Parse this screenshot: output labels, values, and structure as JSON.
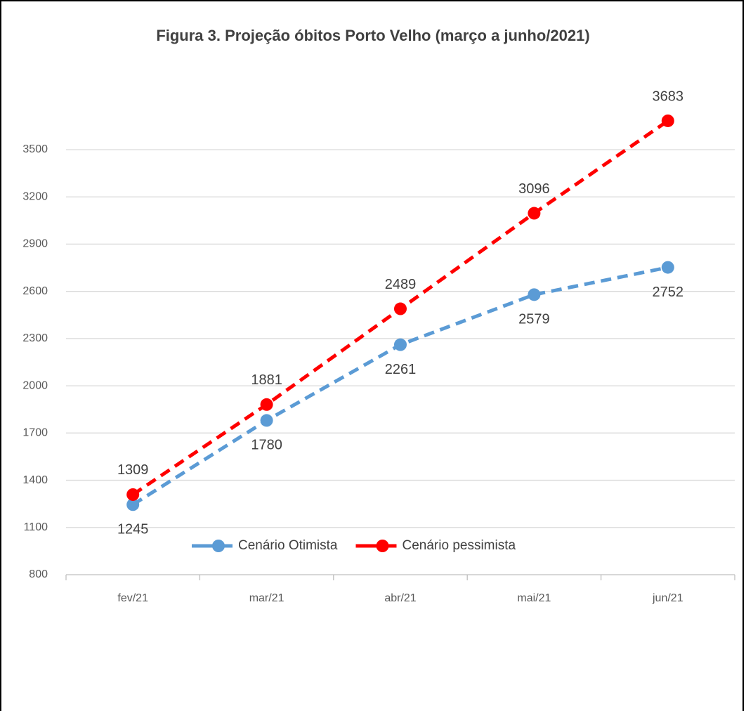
{
  "chart_data": {
    "type": "line",
    "title": "Figura 3. Projeção óbitos Porto Velho (março a junho/2021)",
    "categories": [
      "fev/21",
      "mar/21",
      "abr/21",
      "mai/21",
      "jun/21"
    ],
    "series": [
      {
        "name": "Cenário Otimista",
        "color": "#5b9bd5",
        "values": [
          1245,
          1780,
          2261,
          2579,
          2752
        ]
      },
      {
        "name": "Cenário pessimista",
        "color": "#ff0000",
        "values": [
          1309,
          1881,
          2489,
          3096,
          3683
        ]
      }
    ],
    "ylim": [
      800,
      3500
    ],
    "yticks": [
      800,
      1100,
      1400,
      1700,
      2000,
      2300,
      2600,
      2900,
      3200,
      3500
    ],
    "grid": true,
    "legend": "bottom",
    "dashed": true,
    "markers": true
  }
}
